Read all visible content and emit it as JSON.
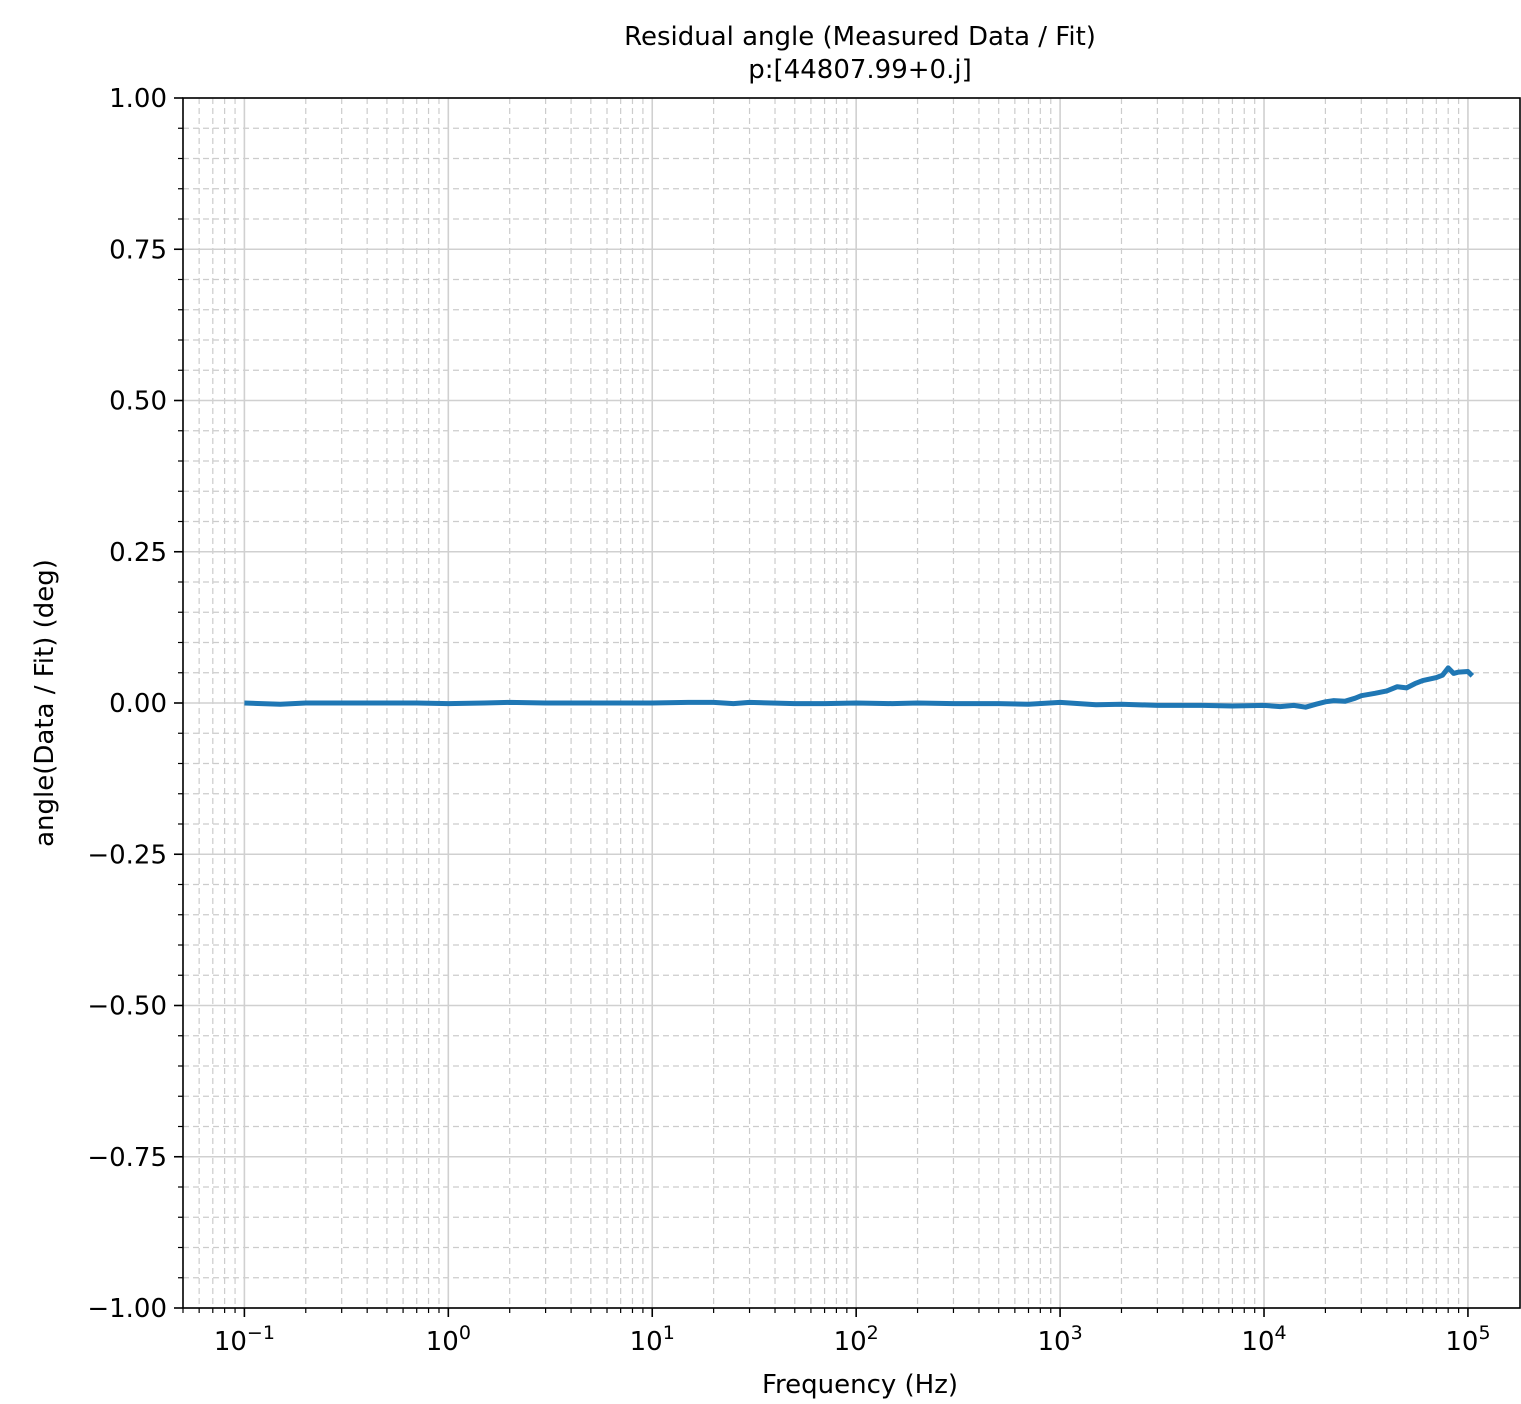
{
  "chart_data": {
    "type": "line",
    "title": "Residual angle (Measured Data / Fit)",
    "subtitle": "p:[44807.99+0.j]",
    "xlabel": "Frequency (Hz)",
    "ylabel": "angle(Data / Fit) (deg)",
    "x_scale": "log",
    "xlim": [
      0.05,
      180000
    ],
    "ylim": [
      -1.0,
      1.0
    ],
    "x_ticks": [
      {
        "value": 0.1,
        "base": "10",
        "exp": "−1"
      },
      {
        "value": 1,
        "base": "10",
        "exp": "0"
      },
      {
        "value": 10,
        "base": "10",
        "exp": "1"
      },
      {
        "value": 100,
        "base": "10",
        "exp": "2"
      },
      {
        "value": 1000,
        "base": "10",
        "exp": "3"
      },
      {
        "value": 10000,
        "base": "10",
        "exp": "4"
      },
      {
        "value": 100000,
        "base": "10",
        "exp": "5"
      }
    ],
    "y_ticks": [
      {
        "value": 1.0,
        "label": "1.00"
      },
      {
        "value": 0.75,
        "label": "0.75"
      },
      {
        "value": 0.5,
        "label": "0.50"
      },
      {
        "value": 0.25,
        "label": "0.25"
      },
      {
        "value": 0.0,
        "label": "0.00"
      },
      {
        "value": -0.25,
        "label": "−0.25"
      },
      {
        "value": -0.5,
        "label": "−0.50"
      },
      {
        "value": -0.75,
        "label": "−0.75"
      },
      {
        "value": -1.0,
        "label": "−1.00"
      }
    ],
    "grid": {
      "major": true,
      "minor": true
    },
    "series": [
      {
        "color": "#1f77b4",
        "x": [
          0.1,
          0.15,
          0.2,
          0.3,
          0.5,
          0.7,
          1,
          1.5,
          2,
          3,
          5,
          7,
          10,
          15,
          20,
          25,
          30,
          50,
          70,
          100,
          150,
          200,
          300,
          500,
          700,
          1000,
          1500,
          2000,
          3000,
          5000,
          7000,
          10000,
          12000,
          14000,
          16000,
          18000,
          20000,
          22000,
          25000,
          28000,
          30000,
          35000,
          40000,
          45000,
          50000,
          55000,
          60000,
          70000,
          75000,
          80000,
          85000,
          90000,
          100000,
          105000
        ],
        "y": [
          0.0,
          -0.002,
          0.0,
          0.0,
          0.0,
          0.0,
          -0.001,
          0.0,
          0.001,
          0.0,
          0.0,
          0.0,
          0.0,
          0.001,
          0.001,
          -0.001,
          0.001,
          -0.001,
          -0.001,
          0.0,
          -0.001,
          0.0,
          -0.001,
          -0.001,
          -0.002,
          0.001,
          -0.003,
          -0.002,
          -0.004,
          -0.004,
          -0.005,
          -0.004,
          -0.006,
          -0.004,
          -0.007,
          -0.002,
          0.002,
          0.004,
          0.003,
          0.008,
          0.012,
          0.016,
          0.02,
          0.027,
          0.025,
          0.032,
          0.037,
          0.042,
          0.046,
          0.058,
          0.049,
          0.051,
          0.052,
          0.045
        ]
      }
    ]
  }
}
